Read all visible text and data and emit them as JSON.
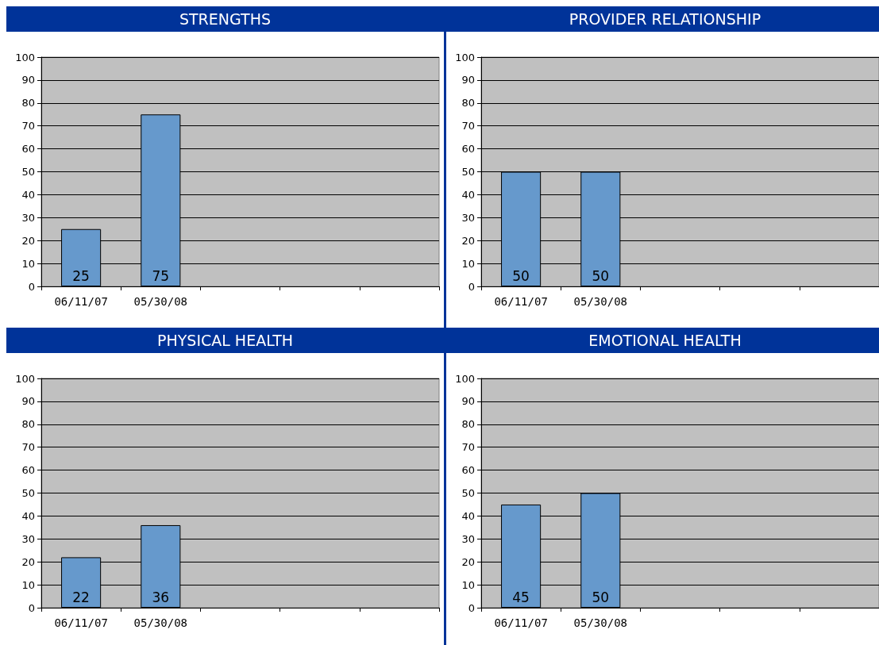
{
  "chart_data": [
    {
      "type": "bar",
      "title": "STRENGTHS",
      "categories": [
        "06/11/07",
        "05/30/08",
        null,
        null,
        null
      ],
      "values": [
        25,
        75,
        null,
        null,
        null
      ],
      "color": "#6699cc",
      "ylim": [
        0,
        100
      ],
      "yticks": [
        0,
        10,
        20,
        30,
        40,
        50,
        60,
        70,
        80,
        90,
        100
      ],
      "grid": "y",
      "data_labels": true
    },
    {
      "type": "bar",
      "title": "PROVIDER RELATIONSHIP",
      "categories": [
        "06/11/07",
        "05/30/08",
        null,
        null,
        null
      ],
      "values": [
        50,
        50,
        null,
        null,
        null
      ],
      "color": "#6699cc",
      "ylim": [
        0,
        100
      ],
      "yticks": [
        0,
        10,
        20,
        30,
        40,
        50,
        60,
        70,
        80,
        90,
        100
      ],
      "grid": "y",
      "data_labels": true
    },
    {
      "type": "bar",
      "title": "PHYSICAL HEALTH",
      "categories": [
        "06/11/07",
        "05/30/08",
        null,
        null,
        null
      ],
      "values": [
        22,
        36,
        null,
        null,
        null
      ],
      "color": "#6699cc",
      "ylim": [
        0,
        100
      ],
      "yticks": [
        0,
        10,
        20,
        30,
        40,
        50,
        60,
        70,
        80,
        90,
        100
      ],
      "grid": "y",
      "data_labels": true
    },
    {
      "type": "bar",
      "title": "EMOTIONAL HEALTH",
      "categories": [
        "06/11/07",
        "05/30/08",
        null,
        null,
        null
      ],
      "values": [
        45,
        50,
        null,
        null,
        null
      ],
      "color": "#6699cc",
      "ylim": [
        0,
        100
      ],
      "yticks": [
        0,
        10,
        20,
        30,
        40,
        50,
        60,
        70,
        80,
        90,
        100
      ],
      "grid": "y",
      "data_labels": true
    }
  ]
}
